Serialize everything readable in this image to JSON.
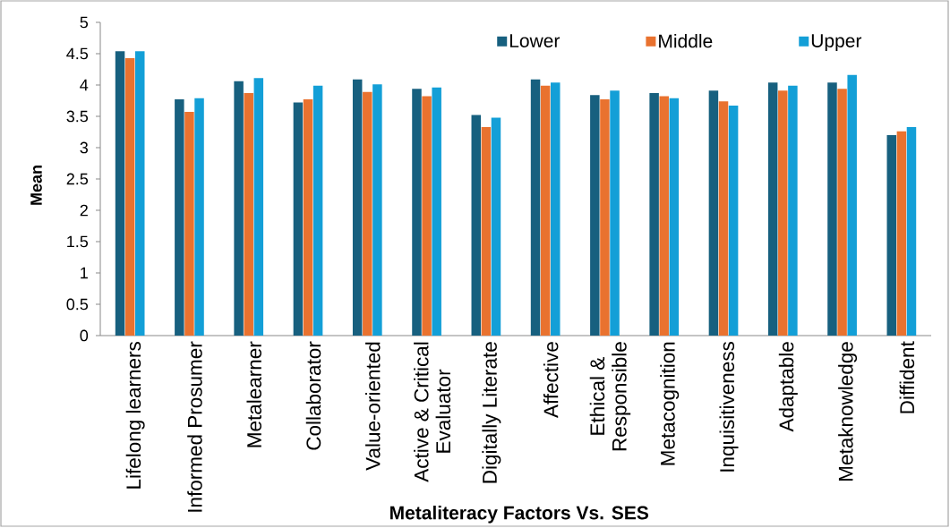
{
  "chart_data": {
    "type": "bar",
    "xlabel": "Metaliteracy Factors Vs. SES",
    "ylabel": "Mean",
    "categories": [
      "Lifelong learners",
      "Informed Prosumer",
      "Metalearner",
      "Collaborator",
      "Value-oriented",
      "Active & Critical Evaluator",
      "Digitally Literate",
      "Affective",
      "Ethical & Responsible",
      "Metacognition",
      "Inquisitiveness",
      "Adaptable",
      "Metaknowledge",
      "Diffident"
    ],
    "series": [
      {
        "name": "Lower",
        "color": "#17607f",
        "values": [
          4.54,
          3.77,
          4.06,
          3.72,
          4.09,
          3.94,
          3.52,
          4.09,
          3.84,
          3.87,
          3.91,
          4.04,
          4.04,
          3.2
        ]
      },
      {
        "name": "Middle",
        "color": "#e9722f",
        "values": [
          4.43,
          3.57,
          3.87,
          3.77,
          3.89,
          3.82,
          3.33,
          3.99,
          3.77,
          3.82,
          3.74,
          3.91,
          3.94,
          3.26
        ]
      },
      {
        "name": "Upper",
        "color": "#139fd7",
        "values": [
          4.54,
          3.79,
          4.11,
          3.99,
          4.01,
          3.96,
          3.48,
          4.04,
          3.91,
          3.79,
          3.67,
          3.99,
          4.16,
          3.33
        ]
      }
    ],
    "ylim": [
      0,
      5
    ],
    "yticks": [
      0,
      0.5,
      1,
      1.5,
      2,
      2.5,
      3,
      3.5,
      4,
      4.5,
      5
    ],
    "legend": "top right"
  }
}
